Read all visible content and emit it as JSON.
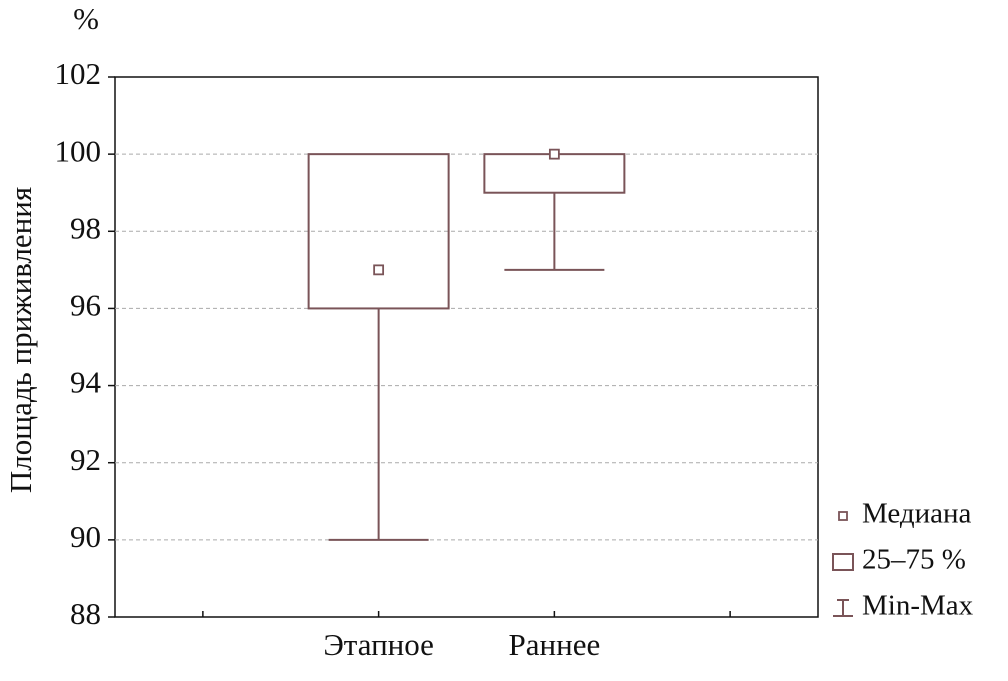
{
  "chart_data": {
    "type": "box",
    "y_label": "Площадь приживления",
    "y_unit": "%",
    "categories": [
      null,
      "Этапное",
      "Раннее",
      null
    ],
    "series": {
      "color": "#7a5458",
      "min": [
        null,
        90,
        97,
        null
      ],
      "q1": [
        null,
        96,
        99,
        null
      ],
      "median": [
        null,
        97,
        100,
        null
      ],
      "q3": [
        null,
        100,
        100,
        null
      ],
      "max": [
        null,
        100,
        100,
        null
      ]
    },
    "ylim": [
      88,
      102
    ],
    "yticks": [
      88,
      90,
      92,
      94,
      96,
      98,
      100,
      102
    ],
    "grid": true,
    "legend_position": "right",
    "legend_labels": [
      "Медиана",
      "25–75 %",
      "Min-Max"
    ]
  }
}
